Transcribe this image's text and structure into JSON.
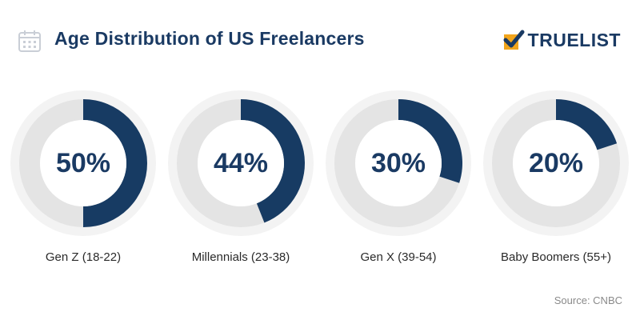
{
  "header": {
    "title": "Age Distribution of US Freelancers",
    "brand": "TRUELIST",
    "icon": "calendar-icon",
    "brand_icon": "checkmark-clipboard-icon"
  },
  "colors": {
    "filled": "#173b63",
    "track": "#e4e4e4",
    "halo": "#f3f3f3",
    "text": "#1a3a63",
    "brand_accent": "#f2a51c"
  },
  "chart_data": {
    "type": "pie",
    "variant": "donut-gauges",
    "categories": [
      "Gen Z (18-22)",
      "Millennials (23-38)",
      "Gen X (39-54)",
      "Baby Boomers (55+)"
    ],
    "values": [
      50,
      44,
      30,
      20
    ],
    "value_labels": [
      "50%",
      "44%",
      "30%",
      "20%"
    ],
    "unit": "%"
  },
  "source": "Source: CNBC"
}
